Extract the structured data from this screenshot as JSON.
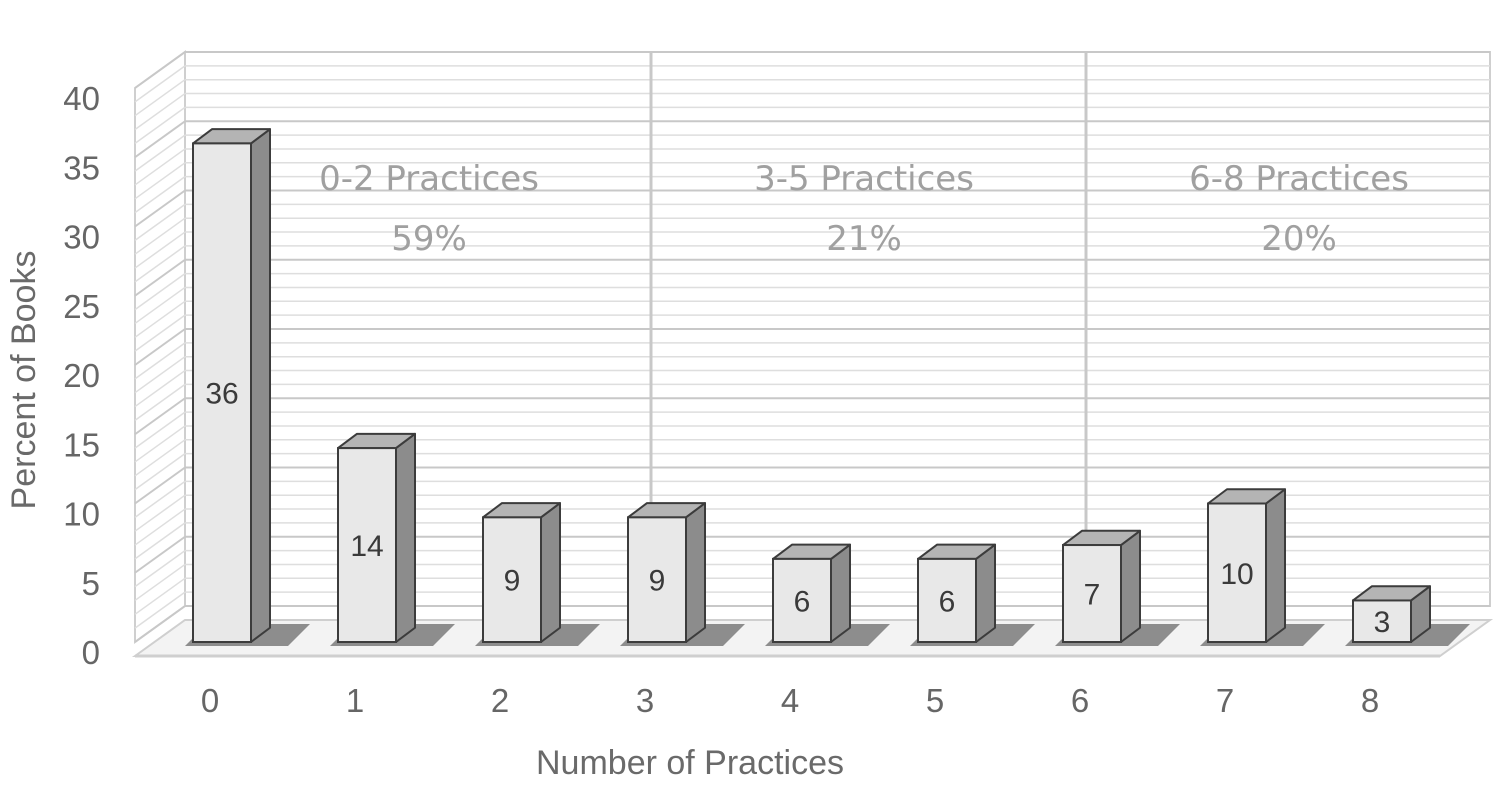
{
  "chart_data": {
    "type": "bar",
    "style": "3d-column",
    "xlabel": "Number of Practices",
    "ylabel": "Percent of Books",
    "ylim": [
      0,
      40
    ],
    "y_ticks": [
      0,
      5,
      10,
      15,
      20,
      25,
      30,
      35,
      40
    ],
    "categories": [
      "0",
      "1",
      "2",
      "3",
      "4",
      "5",
      "6",
      "7",
      "8"
    ],
    "values": [
      36,
      14,
      9,
      9,
      6,
      6,
      7,
      10,
      3
    ],
    "data_labels": [
      "36",
      "14",
      "9",
      "9",
      "6",
      "6",
      "7",
      "10",
      "3"
    ],
    "grid": true,
    "groups": [
      {
        "label": "0-2 Practices",
        "percent": "59%",
        "categories": [
          "0",
          "1",
          "2"
        ]
      },
      {
        "label": "3-5 Practices",
        "percent": "21%",
        "categories": [
          "3",
          "4",
          "5"
        ]
      },
      {
        "label": "6-8 Practices",
        "percent": "20%",
        "categories": [
          "6",
          "7",
          "8"
        ]
      }
    ],
    "colors": {
      "bar_front": "#e8e8e8",
      "bar_side": "#8c8c8c",
      "bar_top": "#b4b4b4",
      "bar_edge": "#3c3c3c",
      "grid": "#d6d6d6",
      "floor_shadow": "#7a7a7a"
    }
  }
}
